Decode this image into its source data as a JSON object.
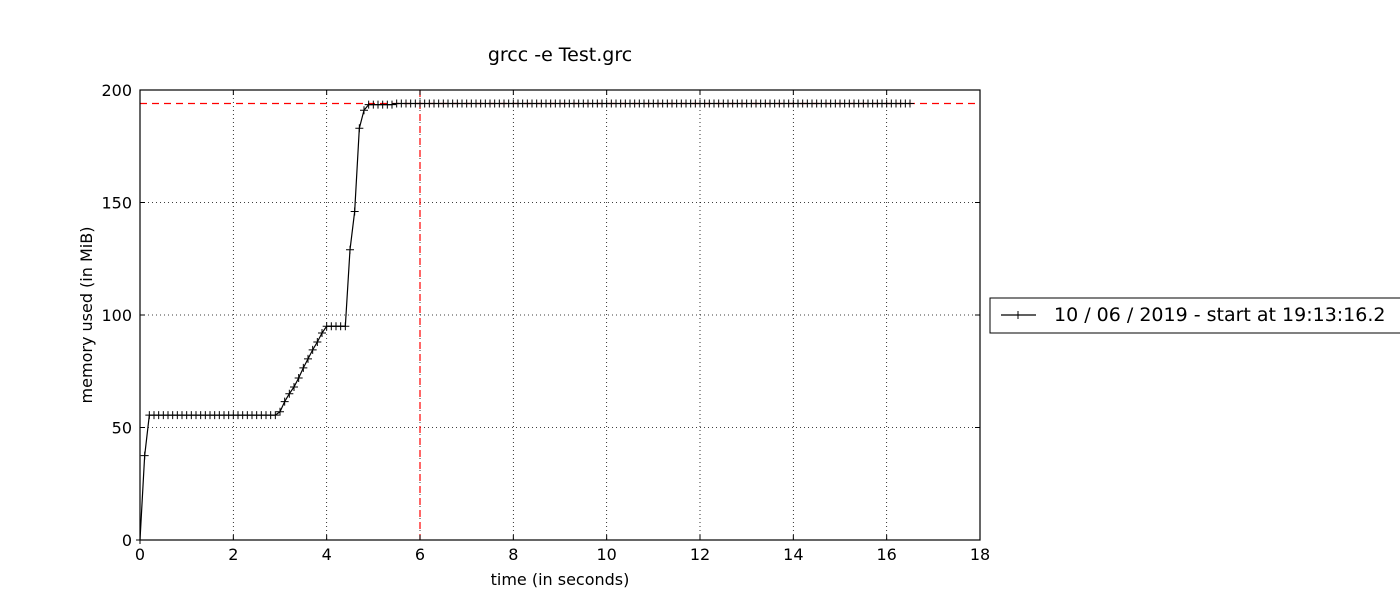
{
  "chart_data": {
    "type": "line",
    "title": "grcc -e Test.grc",
    "xlabel": "time (in seconds)",
    "ylabel": "memory used (in MiB)",
    "xlim": [
      0,
      18
    ],
    "ylim": [
      0,
      200
    ],
    "xticks": [
      0,
      2,
      4,
      6,
      8,
      10,
      12,
      14,
      16,
      18
    ],
    "yticks": [
      0,
      50,
      100,
      150,
      200
    ],
    "grid": true,
    "legend_position": "right",
    "series": [
      {
        "name": "10 / 06 / 2019 - start at 19:13:16.2",
        "color": "#000000",
        "marker": "+",
        "x": [
          0,
          0.1,
          0.2,
          0.3,
          0.4,
          0.5,
          0.6,
          0.7,
          0.8,
          0.9,
          1.0,
          1.1,
          1.2,
          1.3,
          1.4,
          1.5,
          1.6,
          1.7,
          1.8,
          1.9,
          2.0,
          2.1,
          2.2,
          2.3,
          2.4,
          2.5,
          2.6,
          2.7,
          2.8,
          2.9,
          3.0,
          3.1,
          3.2,
          3.3,
          3.4,
          3.5,
          3.6,
          3.7,
          3.8,
          3.9,
          4.0,
          4.1,
          4.2,
          4.3,
          4.4,
          4.5,
          4.6,
          4.7,
          4.8,
          4.9,
          5.0,
          5.1,
          5.2,
          5.3,
          5.4,
          5.5
        ],
        "y": [
          0,
          37.5,
          55.5,
          55.5,
          55.5,
          55.5,
          55.5,
          55.5,
          55.5,
          55.5,
          55.5,
          55.5,
          55.5,
          55.5,
          55.5,
          55.5,
          55.5,
          55.5,
          55.5,
          55.5,
          55.5,
          55.5,
          55.5,
          55.5,
          55.5,
          55.5,
          55.5,
          55.5,
          55.5,
          55.5,
          57,
          61.5,
          65,
          68,
          72,
          76.5,
          80.5,
          84.5,
          88,
          92,
          95,
          95,
          95,
          95,
          95,
          129,
          146,
          183,
          191,
          193.5,
          193.5,
          193.5,
          193.5,
          193.5,
          193.5,
          194
        ],
        "plateau": {
          "from": 5.5,
          "to": 16.5,
          "step": 0.1,
          "y": 194
        }
      }
    ],
    "reference_lines": [
      {
        "orientation": "horizontal",
        "value": 194,
        "color": "#ff0000",
        "style": "dashed"
      },
      {
        "orientation": "vertical",
        "value": 6,
        "color": "#ff0000",
        "style": "dashed"
      }
    ]
  }
}
